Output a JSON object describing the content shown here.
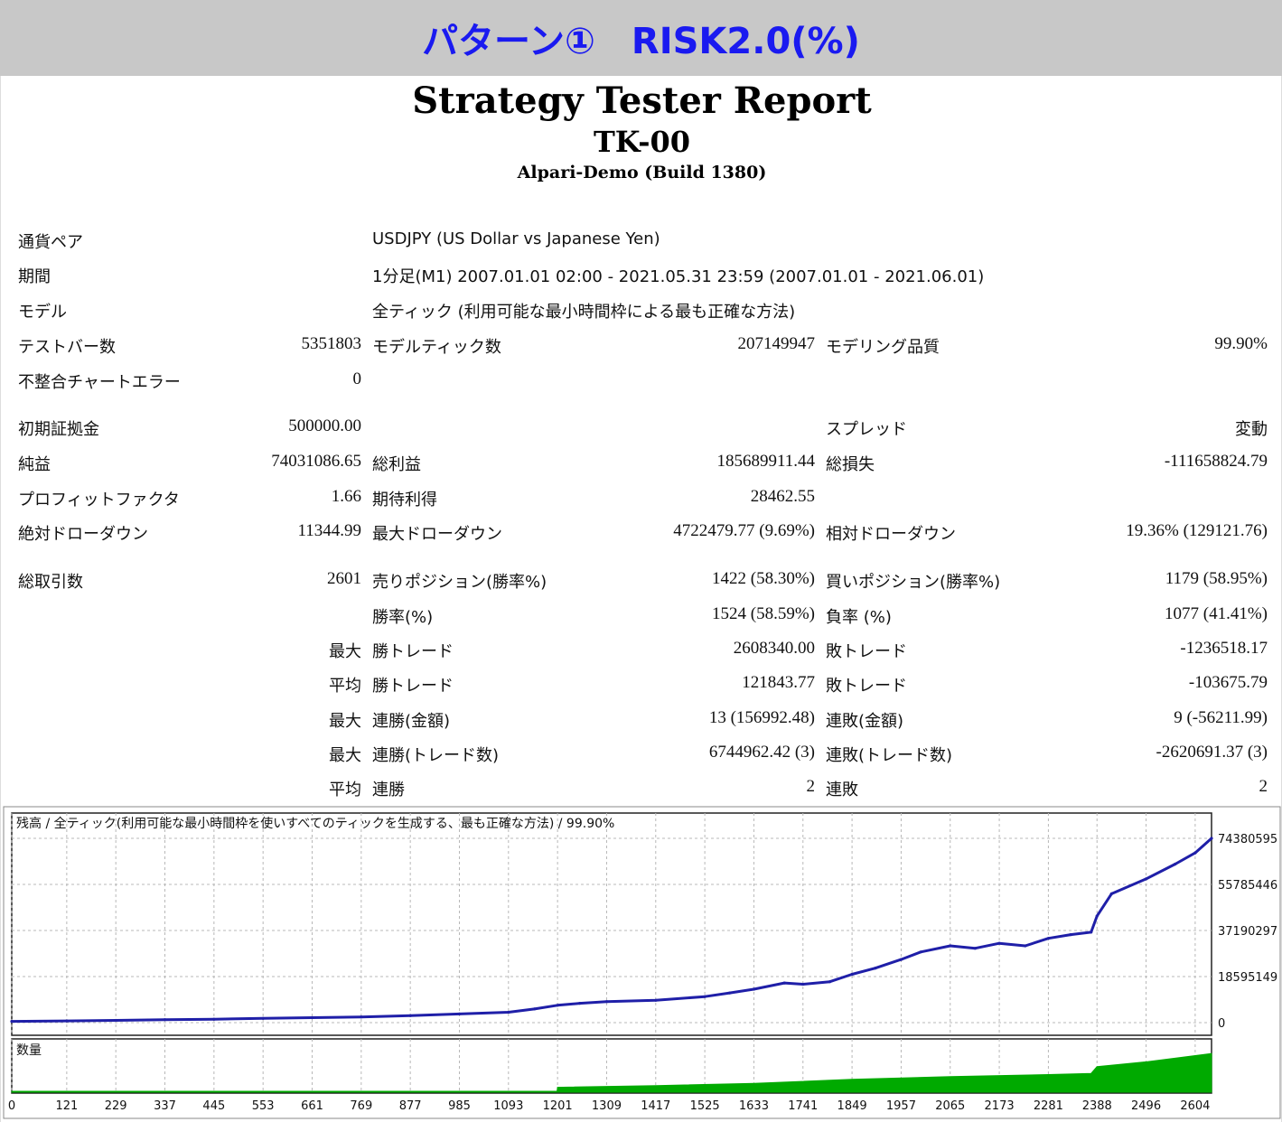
{
  "banner": {
    "title": "パターン①　RISK2.0(%)"
  },
  "report": {
    "title": "Strategy Tester Report",
    "ea_name": "TK-00",
    "broker": "Alpari-Demo (Build 1380)"
  },
  "info": {
    "symbol_label": "通貨ペア",
    "symbol_value": "USDJPY (US Dollar vs Japanese Yen)",
    "period_label": "期間",
    "period_value": "1分足(M1) 2007.01.01 02:00 - 2021.05.31 23:59 (2007.01.01 - 2021.06.01)",
    "model_label": "モデル",
    "model_value": "全ティック (利用可能な最小時間枠による最も正確な方法)",
    "bars_label": "テストバー数",
    "bars_value": "5351803",
    "ticks_label": "モデルティック数",
    "ticks_value": "207149947",
    "quality_label": "モデリング品質",
    "quality_value": "99.90%",
    "errors_label": "不整合チャートエラー",
    "errors_value": "0"
  },
  "stats": {
    "deposit_label": "初期証拠金",
    "deposit_value": "500000.00",
    "spread_label": "スプレッド",
    "spread_value": "変動",
    "net_label": "純益",
    "net_value": "74031086.65",
    "gross_profit_label": "総利益",
    "gross_profit_value": "185689911.44",
    "gross_loss_label": "総損失",
    "gross_loss_value": "-111658824.79",
    "pf_label": "プロフィットファクタ",
    "pf_value": "1.66",
    "payoff_label": "期待利得",
    "payoff_value": "28462.55",
    "abs_dd_label": "絶対ドローダウン",
    "abs_dd_value": "11344.99",
    "max_dd_label": "最大ドローダウン",
    "max_dd_value": "4722479.77 (9.69%)",
    "rel_dd_label": "相対ドローダウン",
    "rel_dd_value": "19.36% (129121.76)",
    "trades_label": "総取引数",
    "trades_value": "2601",
    "short_label": "売りポジション(勝率%)",
    "short_value": "1422 (58.30%)",
    "long_label": "買いポジション(勝率%)",
    "long_value": "1179 (58.95%)",
    "win_rate_label": "勝率(%)",
    "win_rate_value": "1524 (58.59%)",
    "loss_rate_label": "負率 (%)",
    "loss_rate_value": "1077 (41.41%)",
    "max1_label": "最大",
    "largest_win_label": "勝トレード",
    "largest_win_value": "2608340.00",
    "largest_loss_label": "敗トレード",
    "largest_loss_value": "-1236518.17",
    "avg1_label": "平均",
    "avg_win_label": "勝トレード",
    "avg_win_value": "121843.77",
    "avg_loss_label": "敗トレード",
    "avg_loss_value": "-103675.79",
    "max2_label": "最大",
    "cons_wins_label": "連勝(金額)",
    "cons_wins_value": "13 (156992.48)",
    "cons_losses_label": "連敗(金額)",
    "cons_losses_value": "9 (-56211.99)",
    "max3_label": "最大",
    "cons_profit_label": "連勝(トレード数)",
    "cons_profit_value": "6744962.42 (3)",
    "cons_loss_label": "連敗(トレード数)",
    "cons_loss_value": "-2620691.37 (3)",
    "avg2_label": "平均",
    "avg_cons_wins_label": "連勝",
    "avg_cons_wins_value": "2",
    "avg_cons_losses_label": "連敗",
    "avg_cons_losses_value": "2"
  },
  "chart_data": {
    "type": "line",
    "legend": "残高 / 全ティック(利用可能な最小時間枠を使いすべてのティックを生成する、最も正確な方法) / 99.90%",
    "volume_label": "数量",
    "series": [
      {
        "name": "残高",
        "color": "#1f1fa8",
        "x": [
          0,
          121,
          229,
          337,
          445,
          553,
          661,
          769,
          877,
          985,
          1093,
          1150,
          1201,
          1250,
          1309,
          1417,
          1525,
          1580,
          1633,
          1700,
          1741,
          1800,
          1849,
          1900,
          1957,
          2000,
          2065,
          2120,
          2173,
          2230,
          2281,
          2330,
          2375,
          2388,
          2420,
          2496,
          2560,
          2604,
          2640
        ],
        "values": [
          500000,
          700000,
          900000,
          1200000,
          1400000,
          1700000,
          2000000,
          2300000,
          2800000,
          3500000,
          4200000,
          5500000,
          7000000,
          7800000,
          8500000,
          9000000,
          10500000,
          12000000,
          13500000,
          16000000,
          15500000,
          16500000,
          19500000,
          22000000,
          25500000,
          28500000,
          31000000,
          30000000,
          32000000,
          31000000,
          34000000,
          35500000,
          36500000,
          43000000,
          52000000,
          58000000,
          64000000,
          68500000,
          74380595
        ]
      },
      {
        "name": "数量",
        "color": "#00aa00",
        "x": [
          0,
          1200,
          1201,
          1417,
          1633,
          1849,
          2065,
          2281,
          2375,
          2388,
          2496,
          2640
        ],
        "values": [
          0,
          0,
          0.1,
          0.14,
          0.2,
          0.3,
          0.37,
          0.42,
          0.45,
          0.62,
          0.74,
          0.95
        ]
      }
    ],
    "y_ticks": [
      "74380595",
      "55785446",
      "37190297",
      "18595149",
      "0"
    ],
    "x_ticks": [
      "0",
      "121",
      "229",
      "337",
      "445",
      "553",
      "661",
      "769",
      "877",
      "985",
      "1093",
      "1201",
      "1309",
      "1417",
      "1525",
      "1633",
      "1741",
      "1849",
      "1957",
      "2065",
      "2173",
      "2281",
      "2388",
      "2496",
      "2604"
    ],
    "ylim": [
      0,
      74380595
    ],
    "xlim": [
      0,
      2640
    ],
    "grid": true
  }
}
